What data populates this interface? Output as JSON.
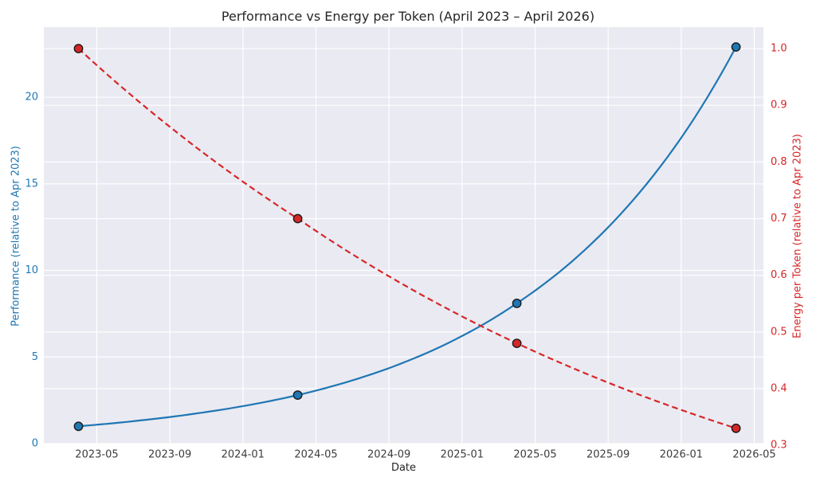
{
  "chart_data": {
    "type": "line",
    "title": "Performance vs Energy per Token (April 2023 – April 2026)",
    "xlabel": "Date",
    "background": "#eaeaf2",
    "grid": {
      "show": true,
      "color": "#ffffff"
    },
    "legend": "none",
    "x_axis": {
      "range_months": [
        -1.9,
        37.5
      ],
      "ticks": [
        {
          "label": "2023-05"
        },
        {
          "label": "2023-09"
        },
        {
          "label": "2024-01"
        },
        {
          "label": "2024-05"
        },
        {
          "label": "2024-09"
        },
        {
          "label": "2025-01"
        },
        {
          "label": "2025-05"
        },
        {
          "label": "2025-09"
        },
        {
          "label": "2026-01"
        },
        {
          "label": "2026-05"
        }
      ]
    },
    "left_axis": {
      "label": "Performance (relative to Apr 2023)",
      "color": "#1f77b4",
      "range": [
        0,
        24.05
      ],
      "ticks": [
        {
          "value": 0,
          "label": "0"
        },
        {
          "value": 5,
          "label": "5"
        },
        {
          "value": 10,
          "label": "10"
        },
        {
          "value": 15,
          "label": "15"
        },
        {
          "value": 20,
          "label": "20"
        }
      ]
    },
    "right_axis": {
      "label": "Energy per Token (relative to Apr 2023)",
      "color": "#d62728",
      "range": [
        0.303,
        1.038
      ],
      "ticks": [
        {
          "value": 1.0,
          "label": "1.0"
        },
        {
          "value": 0.9,
          "label": "0.9"
        },
        {
          "value": 0.8,
          "label": "0.8"
        },
        {
          "value": 0.7,
          "label": "0.7"
        },
        {
          "value": 0.6,
          "label": "0.6"
        },
        {
          "value": 0.5,
          "label": "0.5"
        },
        {
          "value": 0.4,
          "label": "0.4"
        },
        {
          "value": 0.3,
          "label": "0.3"
        }
      ]
    },
    "series": [
      {
        "name": "performance",
        "axis": "left",
        "color": "#1f77b4",
        "line_style": "solid",
        "marker": "circle",
        "dates": [
          "2023-04",
          "2024-04",
          "2025-04",
          "2026-04"
        ],
        "values": [
          1.0,
          2.8,
          8.1,
          22.9
        ]
      },
      {
        "name": "energy-per-token",
        "axis": "right",
        "color": "#d62728",
        "line_style": "dashed",
        "marker": "circle",
        "dates": [
          "2023-04",
          "2024-04",
          "2025-04",
          "2026-04"
        ],
        "values": [
          1.0,
          0.7,
          0.48,
          0.33
        ]
      }
    ]
  }
}
